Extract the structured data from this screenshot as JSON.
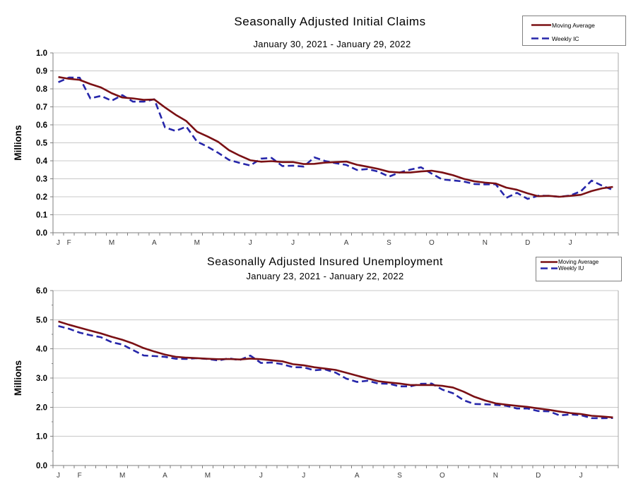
{
  "chart_data": [
    {
      "type": "line",
      "title": "Seasonally Adjusted Initial Claims",
      "subtitle": "January 30, 2021 - January 29, 2022",
      "ylabel": "Millions",
      "ylim": [
        0.0,
        1.0
      ],
      "ytick_step": 0.1,
      "ytick_labels": [
        "0.0",
        "0.1",
        "0.2",
        "0.3",
        "0.4",
        "0.5",
        "0.6",
        "0.7",
        "0.8",
        "0.9",
        "1.0"
      ],
      "x_month_labels": [
        "J",
        "F",
        "M",
        "A",
        "M",
        "J",
        "J",
        "A",
        "S",
        "O",
        "N",
        "D",
        "J"
      ],
      "x_month_week_index": [
        0,
        1,
        5,
        9,
        13,
        18,
        22,
        27,
        31,
        35,
        40,
        44,
        48
      ],
      "n_points": 53,
      "grid": "horizontal",
      "legend_position": "top-right",
      "series": [
        {
          "name": "Moving Average",
          "style": "solid",
          "color": "#7a1014",
          "values": [
            0.866,
            0.856,
            0.85,
            0.827,
            0.808,
            0.776,
            0.752,
            0.747,
            0.739,
            0.741,
            0.697,
            0.656,
            0.621,
            0.562,
            0.535,
            0.505,
            0.459,
            0.429,
            0.403,
            0.395,
            0.398,
            0.393,
            0.393,
            0.382,
            0.383,
            0.39,
            0.393,
            0.396,
            0.378,
            0.367,
            0.355,
            0.339,
            0.335,
            0.335,
            0.341,
            0.345,
            0.335,
            0.32,
            0.3,
            0.286,
            0.279,
            0.274,
            0.251,
            0.239,
            0.219,
            0.203,
            0.205,
            0.2,
            0.205,
            0.211,
            0.232,
            0.247,
            0.255
          ]
        },
        {
          "name": "Weekly IC",
          "style": "dashed",
          "color": "#2626aa",
          "values": [
            0.837,
            0.863,
            0.862,
            0.747,
            0.761,
            0.734,
            0.765,
            0.729,
            0.729,
            0.742,
            0.586,
            0.566,
            0.59,
            0.507,
            0.478,
            0.444,
            0.405,
            0.388,
            0.374,
            0.412,
            0.416,
            0.371,
            0.373,
            0.368,
            0.419,
            0.399,
            0.387,
            0.377,
            0.349,
            0.354,
            0.34,
            0.312,
            0.335,
            0.351,
            0.364,
            0.329,
            0.296,
            0.291,
            0.285,
            0.271,
            0.269,
            0.27,
            0.194,
            0.222,
            0.188,
            0.206,
            0.205,
            0.2,
            0.207,
            0.231,
            0.29,
            0.261,
            0.238
          ]
        }
      ]
    },
    {
      "type": "line",
      "title": "Seasonally Adjusted Insured Unemployment",
      "subtitle": "January 23, 2021 - January 22, 2022",
      "ylabel": "Millions",
      "ylim": [
        0.0,
        6.0
      ],
      "ytick_step": 1.0,
      "ytick_labels": [
        "0.0",
        "1.0",
        "2.0",
        "3.0",
        "4.0",
        "5.0",
        "6.0"
      ],
      "x_month_labels": [
        "J",
        "F",
        "M",
        "A",
        "M",
        "J",
        "J",
        "A",
        "S",
        "O",
        "N",
        "D",
        "J"
      ],
      "x_month_week_index": [
        0,
        2,
        6,
        10,
        14,
        19,
        23,
        28,
        32,
        36,
        41,
        45,
        49
      ],
      "n_points": 53,
      "grid": "horizontal",
      "legend_position": "top-right",
      "series": [
        {
          "name": "Moving Average",
          "style": "solid",
          "color": "#7a1014",
          "values": [
            4.942,
            4.828,
            4.728,
            4.626,
            4.529,
            4.414,
            4.312,
            4.185,
            4.028,
            3.909,
            3.804,
            3.729,
            3.699,
            3.681,
            3.662,
            3.647,
            3.653,
            3.637,
            3.666,
            3.645,
            3.61,
            3.574,
            3.475,
            3.437,
            3.37,
            3.325,
            3.278,
            3.182,
            3.082,
            2.985,
            2.891,
            2.848,
            2.81,
            2.761,
            2.759,
            2.761,
            2.733,
            2.674,
            2.533,
            2.358,
            2.232,
            2.132,
            2.085,
            2.046,
            2.01,
            1.956,
            1.909,
            1.85,
            1.799,
            1.764,
            1.706,
            1.681,
            1.65
          ]
        },
        {
          "name": "Weekly IU",
          "style": "dashed",
          "color": "#2626aa",
          "values": [
            4.785,
            4.69,
            4.558,
            4.469,
            4.4,
            4.23,
            4.148,
            3.96,
            3.774,
            3.753,
            3.727,
            3.662,
            3.653,
            3.68,
            3.653,
            3.602,
            3.676,
            3.617,
            3.77,
            3.517,
            3.534,
            3.475,
            3.372,
            3.367,
            3.265,
            3.296,
            3.185,
            2.98,
            2.866,
            2.908,
            2.811,
            2.805,
            2.714,
            2.715,
            2.802,
            2.811,
            2.603,
            2.48,
            2.239,
            2.109,
            2.101,
            2.08,
            2.049,
            1.955,
            1.954,
            1.867,
            1.859,
            1.718,
            1.753,
            1.727,
            1.624,
            1.621,
            1.628
          ]
        }
      ]
    }
  ]
}
